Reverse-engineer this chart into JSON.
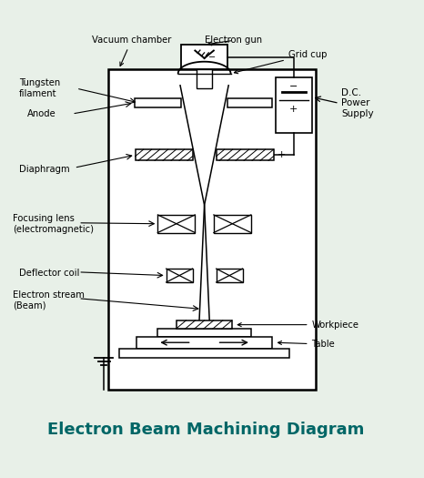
{
  "title": "Electron Beam Machining Diagram",
  "title_color": "#006666",
  "title_fontsize": 13,
  "bg_color": "#e8f0e8",
  "border_color": "#2d7a6b",
  "diagram_color": "black",
  "labels": {
    "vacuum_chamber": "Vacuum chamber",
    "electron_gun": "Electron gun",
    "grid_cup": "Grid cup",
    "tungsten_filament": "Tungsten\nfilament",
    "anode": "Anode",
    "diaphragm": "Diaphragm",
    "focusing_lens": "Focusing lens\n(electromagnetic)",
    "deflector_coil": "Deflector coil",
    "electron_stream": "Electron stream\n(Beam)",
    "workpiece": "Workpiece",
    "table": "Table",
    "dc_power": "D.C.\nPower\nSupply"
  }
}
